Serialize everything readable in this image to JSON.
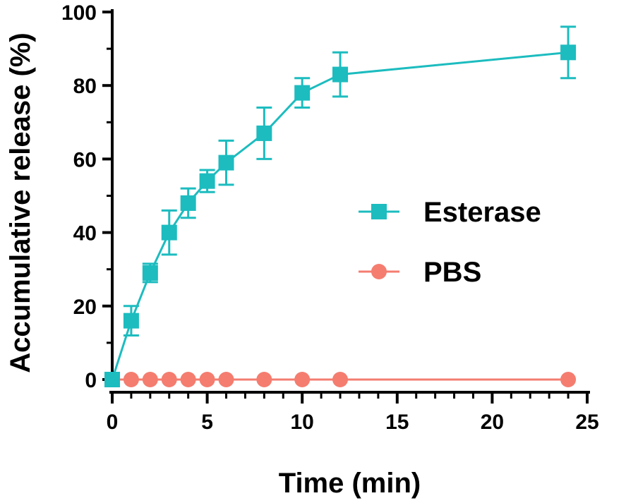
{
  "chart_data": {
    "type": "line",
    "xlabel": "Time (min)",
    "ylabel": "Accumulative release (%)",
    "xlim": [
      0,
      25
    ],
    "ylim": [
      0,
      100
    ],
    "xticks": [
      "0",
      "5",
      "10",
      "15",
      "20",
      "25"
    ],
    "yticks": [
      "0",
      "20",
      "40",
      "60",
      "80",
      "100"
    ],
    "legend_position": "right-middle",
    "grid": false,
    "series": [
      {
        "name": "Esterase",
        "marker": "square",
        "color": "#1cbcbf",
        "x": [
          0,
          1,
          2,
          3,
          4,
          5,
          6,
          8,
          10,
          12,
          24
        ],
        "y": [
          0,
          16,
          29,
          40,
          48,
          54,
          59,
          67,
          78,
          83,
          89
        ],
        "error": [
          0,
          4,
          2.5,
          6,
          4,
          3,
          6,
          7,
          4,
          6,
          7
        ]
      },
      {
        "name": "PBS",
        "marker": "circle",
        "color": "#f47d70",
        "x": [
          0,
          1,
          2,
          3,
          4,
          5,
          6,
          8,
          10,
          12,
          24
        ],
        "y": [
          0,
          0,
          0,
          0,
          0,
          0,
          0,
          0,
          0,
          0,
          0
        ],
        "error": [
          0,
          0,
          0,
          0,
          0,
          0,
          0,
          0,
          0,
          0,
          0
        ]
      }
    ]
  }
}
